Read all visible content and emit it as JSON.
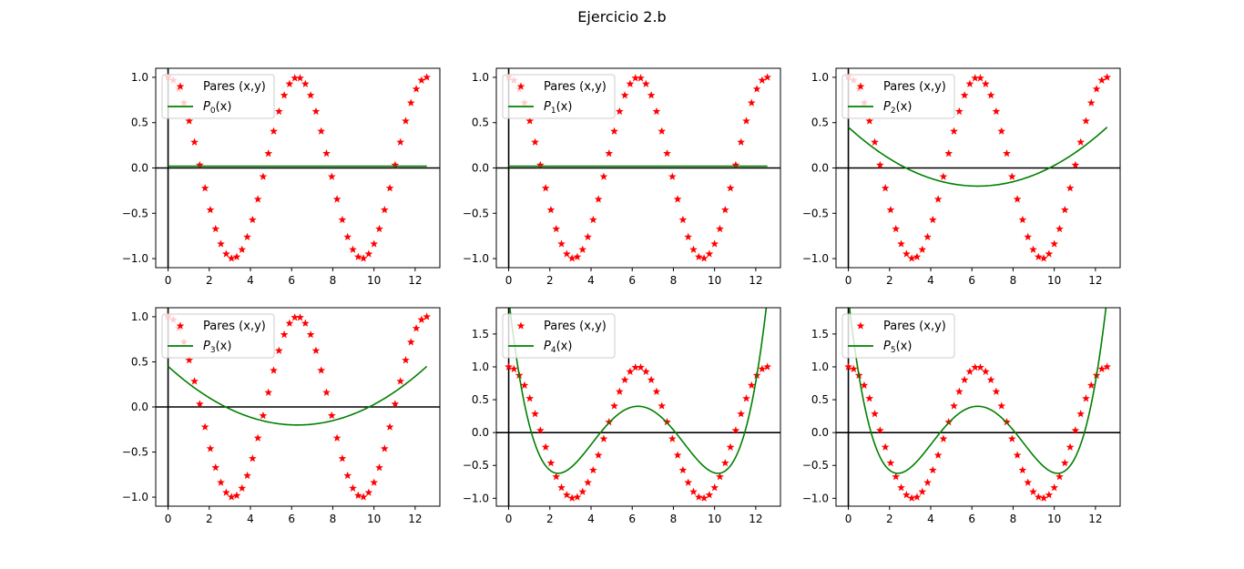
{
  "figure": {
    "title": "Ejercicio 2.b"
  },
  "colors": {
    "points": "#ff0000",
    "poly": "#008000",
    "axes_lines": "#000000"
  },
  "chart_data": [
    {
      "type": "line",
      "legend": [
        "Pares (x,y)",
        "P0(x)"
      ],
      "legend_loc": "upper-left",
      "poly": {
        "kind": "polynomial",
        "coefficients": [
          0.02
        ]
      },
      "xlim": [
        -0.6,
        13.2
      ],
      "ylim": [
        -1.1,
        1.1
      ],
      "xticks": [
        0,
        2,
        4,
        6,
        8,
        10,
        12
      ],
      "xtick_labels": [
        "0",
        "2",
        "4",
        "6",
        "8",
        "10",
        "12"
      ],
      "yticks": [
        -1.0,
        -0.5,
        0.0,
        0.5,
        1.0
      ],
      "ytick_labels": [
        "−1.0",
        "−0.5",
        "0.0",
        "0.5",
        "1.0"
      ]
    },
    {
      "type": "line",
      "legend": [
        "Pares (x,y)",
        "P1(x)"
      ],
      "legend_loc": "upper-left",
      "poly": {
        "kind": "polynomial",
        "coefficients": [
          0.02
        ]
      },
      "xlim": [
        -0.6,
        13.2
      ],
      "ylim": [
        -1.1,
        1.1
      ],
      "xticks": [
        0,
        2,
        4,
        6,
        8,
        10,
        12
      ],
      "xtick_labels": [
        "0",
        "2",
        "4",
        "6",
        "8",
        "10",
        "12"
      ],
      "yticks": [
        -1.0,
        -0.5,
        0.0,
        0.5,
        1.0
      ],
      "ytick_labels": [
        "−1.0",
        "−0.5",
        "0.0",
        "0.5",
        "1.0"
      ]
    },
    {
      "type": "line",
      "legend": [
        "Pares (x,y)",
        "P2(x)"
      ],
      "legend_loc": "upper-left",
      "poly": {
        "kind": "quadratic",
        "vertex_x": 6.283,
        "vertex_y": -0.2,
        "end_y": 0.45
      },
      "xlim": [
        -0.6,
        13.2
      ],
      "ylim": [
        -1.1,
        1.1
      ],
      "xticks": [
        0,
        2,
        4,
        6,
        8,
        10,
        12
      ],
      "xtick_labels": [
        "0",
        "2",
        "4",
        "6",
        "8",
        "10",
        "12"
      ],
      "yticks": [
        -1.0,
        -0.5,
        0.0,
        0.5,
        1.0
      ],
      "ytick_labels": [
        "−1.0",
        "−0.5",
        "0.0",
        "0.5",
        "1.0"
      ]
    },
    {
      "type": "line",
      "legend": [
        "Pares (x,y)",
        "P3(x)"
      ],
      "legend_loc": "upper-left",
      "poly": {
        "kind": "quadratic",
        "vertex_x": 6.283,
        "vertex_y": -0.2,
        "end_y": 0.45
      },
      "xlim": [
        -0.6,
        13.2
      ],
      "ylim": [
        -1.1,
        1.1
      ],
      "xticks": [
        0,
        2,
        4,
        6,
        8,
        10,
        12
      ],
      "xtick_labels": [
        "0",
        "2",
        "4",
        "6",
        "8",
        "10",
        "12"
      ],
      "yticks": [
        -1.0,
        -0.5,
        0.0,
        0.5,
        1.0
      ],
      "ytick_labels": [
        "−1.0",
        "−0.5",
        "0.0",
        "0.5",
        "1.0"
      ]
    },
    {
      "type": "line",
      "legend": [
        "Pares (x,y)",
        "P4(x)"
      ],
      "legend_loc": "upper-left",
      "poly": {
        "kind": "quartic",
        "center_x": 6.283,
        "center_y": 0.4,
        "min_x": 2.4,
        "min_y": -0.62
      },
      "xlim": [
        -0.6,
        13.2
      ],
      "ylim": [
        -1.12,
        1.9
      ],
      "xticks": [
        0,
        2,
        4,
        6,
        8,
        10,
        12
      ],
      "xtick_labels": [
        "0",
        "2",
        "4",
        "6",
        "8",
        "10",
        "12"
      ],
      "yticks": [
        -1.0,
        -0.5,
        0.0,
        0.5,
        1.0,
        1.5
      ],
      "ytick_labels": [
        "−1.0",
        "−0.5",
        "0.0",
        "0.5",
        "1.0",
        "1.5"
      ]
    },
    {
      "type": "line",
      "legend": [
        "Pares (x,y)",
        "P5(x)"
      ],
      "legend_loc": "upper-left",
      "poly": {
        "kind": "quartic",
        "center_x": 6.283,
        "center_y": 0.4,
        "min_x": 2.4,
        "min_y": -0.62
      },
      "xlim": [
        -0.6,
        13.2
      ],
      "ylim": [
        -1.12,
        1.9
      ],
      "xticks": [
        0,
        2,
        4,
        6,
        8,
        10,
        12
      ],
      "xtick_labels": [
        "0",
        "2",
        "4",
        "6",
        "8",
        "10",
        "12"
      ],
      "yticks": [
        -1.0,
        -0.5,
        0.0,
        0.5,
        1.0,
        1.5
      ],
      "ytick_labels": [
        "−1.0",
        "−0.5",
        "0.0",
        "0.5",
        "1.0",
        "1.5"
      ]
    }
  ],
  "points": {
    "function": "cos(x)",
    "count": 50,
    "x_range": [
      0,
      12.566
    ]
  }
}
